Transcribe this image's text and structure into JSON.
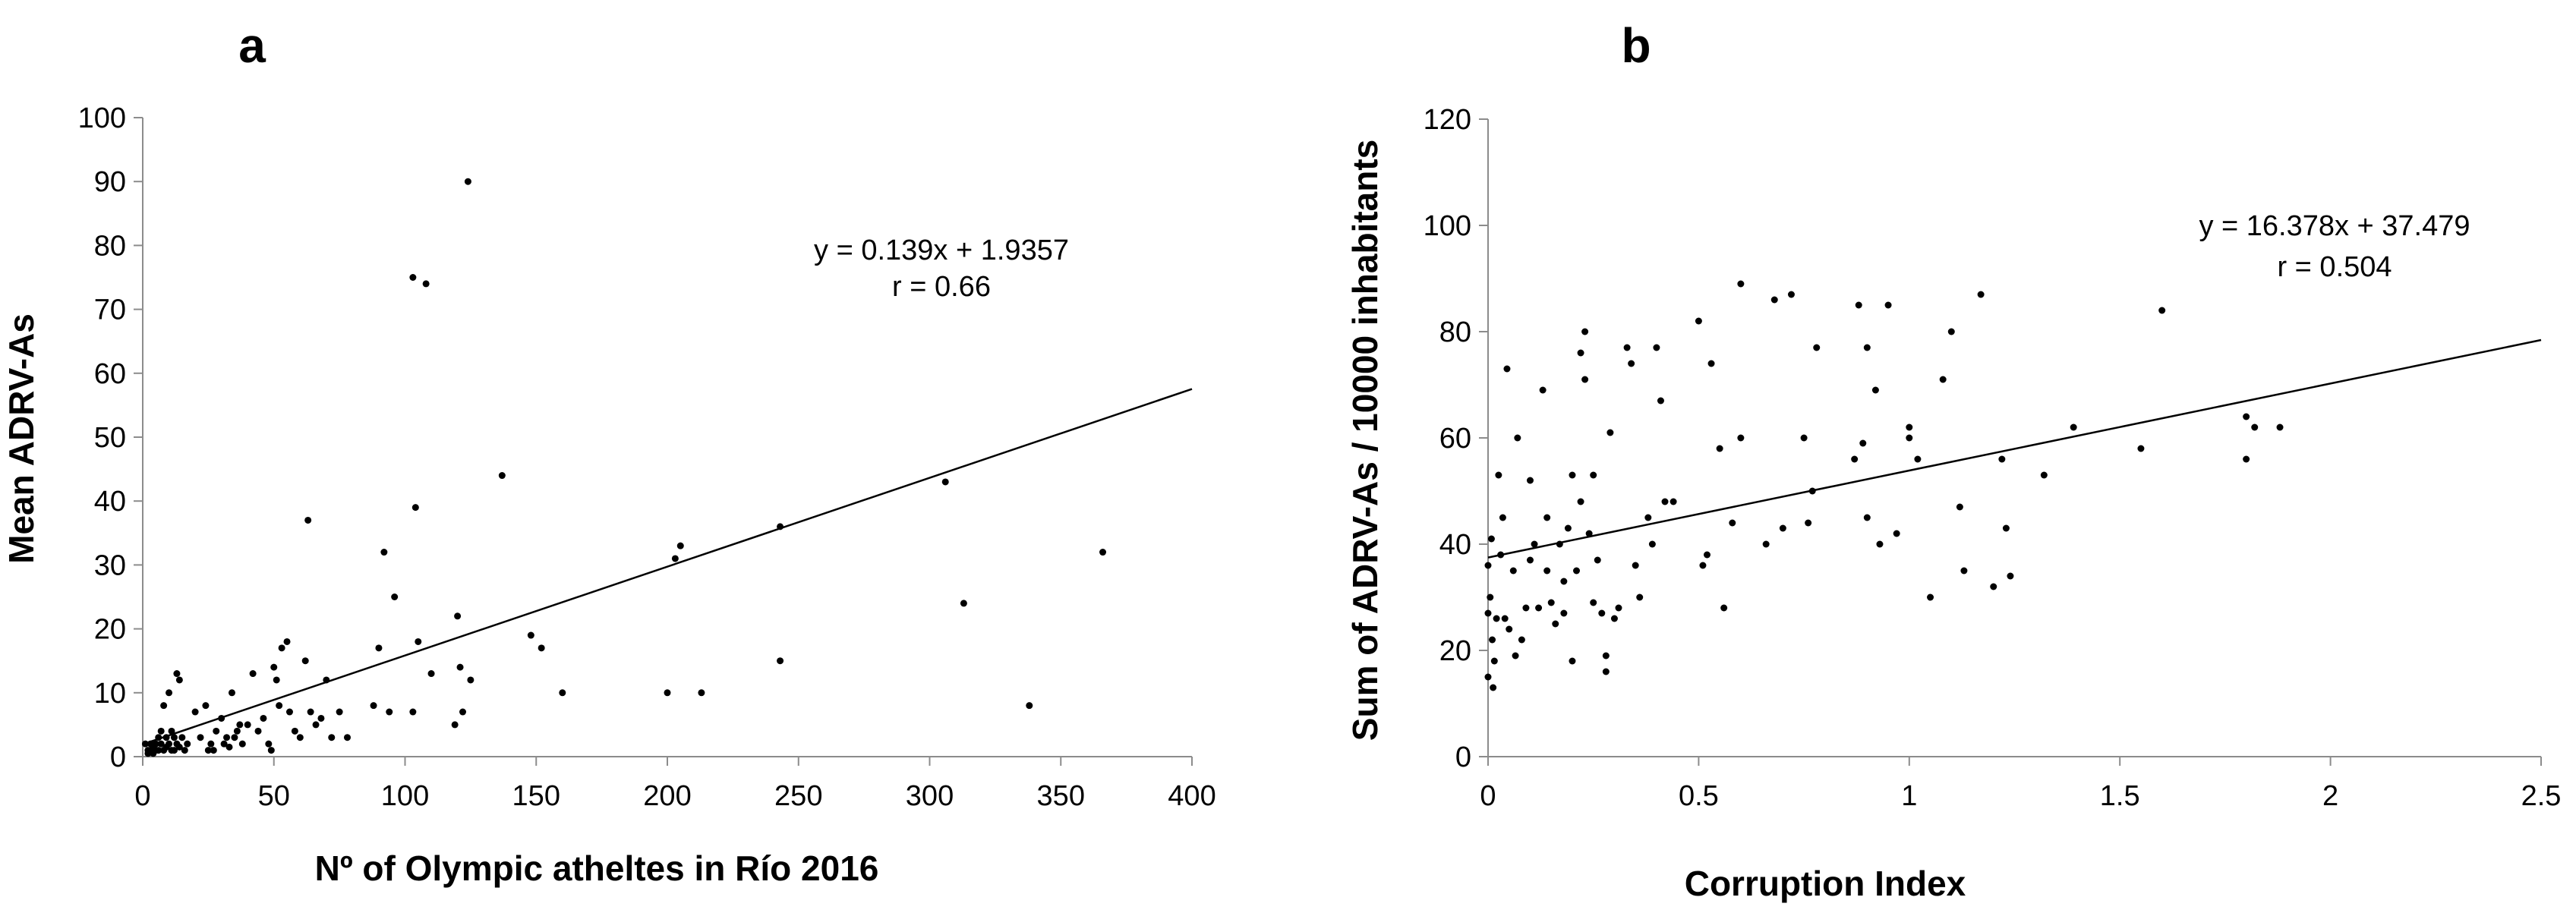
{
  "chart_data": [
    {
      "panel_label": "a",
      "type": "scatter",
      "xlabel": "Nº of Olympic atheltes in Río 2016",
      "ylabel": "Mean ADRV-As",
      "xlim": [
        0,
        400
      ],
      "ylim": [
        0,
        100
      ],
      "xticks": [
        0,
        50,
        100,
        150,
        200,
        250,
        300,
        350,
        400
      ],
      "yticks": [
        0,
        10,
        20,
        30,
        40,
        50,
        60,
        70,
        80,
        90,
        100
      ],
      "grid": false,
      "trendline": {
        "equation": "y = 0.139x + 1.9357",
        "r_label": "r = 0.66",
        "slope": 0.139,
        "intercept": 1.9357,
        "x_range": [
          0,
          400
        ]
      },
      "points": [
        [
          1,
          2
        ],
        [
          2,
          1
        ],
        [
          2,
          0.5
        ],
        [
          3,
          2
        ],
        [
          3,
          1
        ],
        [
          4,
          1.5
        ],
        [
          4,
          0.5
        ],
        [
          5,
          2
        ],
        [
          5,
          1
        ],
        [
          6,
          3
        ],
        [
          6,
          1
        ],
        [
          7,
          4
        ],
        [
          7,
          2
        ],
        [
          8,
          8
        ],
        [
          8,
          1
        ],
        [
          9,
          3
        ],
        [
          9,
          1.5
        ],
        [
          10,
          10
        ],
        [
          10,
          2
        ],
        [
          11,
          4
        ],
        [
          11,
          1
        ],
        [
          12,
          3
        ],
        [
          12,
          1
        ],
        [
          13,
          13
        ],
        [
          13,
          2
        ],
        [
          14,
          12
        ],
        [
          14,
          1.5
        ],
        [
          15,
          3
        ],
        [
          16,
          1
        ],
        [
          17,
          2
        ],
        [
          20,
          7
        ],
        [
          22,
          3
        ],
        [
          24,
          8
        ],
        [
          25,
          1
        ],
        [
          26,
          2
        ],
        [
          27,
          1
        ],
        [
          28,
          4
        ],
        [
          30,
          6
        ],
        [
          31,
          2
        ],
        [
          32,
          3
        ],
        [
          33,
          1.5
        ],
        [
          34,
          10
        ],
        [
          35,
          3
        ],
        [
          36,
          4
        ],
        [
          37,
          5
        ],
        [
          38,
          2
        ],
        [
          40,
          5
        ],
        [
          42,
          13
        ],
        [
          44,
          4
        ],
        [
          46,
          6
        ],
        [
          48,
          2
        ],
        [
          49,
          1
        ],
        [
          50,
          14
        ],
        [
          51,
          12
        ],
        [
          52,
          8
        ],
        [
          53,
          17
        ],
        [
          55,
          18
        ],
        [
          56,
          7
        ],
        [
          58,
          4
        ],
        [
          60,
          3
        ],
        [
          62,
          15
        ],
        [
          63,
          37
        ],
        [
          64,
          7
        ],
        [
          66,
          5
        ],
        [
          68,
          6
        ],
        [
          70,
          12
        ],
        [
          72,
          3
        ],
        [
          75,
          7
        ],
        [
          78,
          3
        ],
        [
          88,
          8
        ],
        [
          90,
          17
        ],
        [
          92,
          32
        ],
        [
          94,
          7
        ],
        [
          96,
          25
        ],
        [
          103,
          75
        ],
        [
          104,
          39
        ],
        [
          105,
          18
        ],
        [
          108,
          74
        ],
        [
          110,
          13
        ],
        [
          103,
          7
        ],
        [
          120,
          22
        ],
        [
          121,
          14
        ],
        [
          122,
          7
        ],
        [
          119,
          5
        ],
        [
          124,
          90
        ],
        [
          125,
          12
        ],
        [
          137,
          44
        ],
        [
          148,
          19
        ],
        [
          152,
          17
        ],
        [
          160,
          10
        ],
        [
          200,
          10
        ],
        [
          203,
          31
        ],
        [
          205,
          33
        ],
        [
          213,
          10
        ],
        [
          243,
          36
        ],
        [
          243,
          15
        ],
        [
          306,
          43
        ],
        [
          313,
          24
        ],
        [
          338,
          8
        ],
        [
          366,
          32
        ]
      ]
    },
    {
      "panel_label": "b",
      "type": "scatter",
      "xlabel": "Corruption Index",
      "ylabel": "Sum of ADRV-As / 10000 inhabitants",
      "xlim": [
        0,
        2.5
      ],
      "ylim": [
        0,
        120
      ],
      "xticks": [
        0,
        0.5,
        1,
        1.5,
        2,
        2.5
      ],
      "yticks": [
        0,
        20,
        40,
        60,
        80,
        100,
        120
      ],
      "grid": false,
      "trendline": {
        "equation": "y = 16.378x + 37.479",
        "r_label": "r = 0.504",
        "slope": 16.378,
        "intercept": 37.479,
        "x_range": [
          0,
          2.5
        ]
      },
      "points": [
        [
          0.0,
          15
        ],
        [
          0.0,
          27
        ],
        [
          0.0,
          36
        ],
        [
          0.005,
          30
        ],
        [
          0.008,
          41
        ],
        [
          0.01,
          22
        ],
        [
          0.012,
          13
        ],
        [
          0.015,
          18
        ],
        [
          0.02,
          26
        ],
        [
          0.025,
          53
        ],
        [
          0.03,
          38
        ],
        [
          0.035,
          45
        ],
        [
          0.04,
          26
        ],
        [
          0.045,
          73
        ],
        [
          0.05,
          24
        ],
        [
          0.06,
          35
        ],
        [
          0.065,
          19
        ],
        [
          0.07,
          60
        ],
        [
          0.08,
          22
        ],
        [
          0.09,
          28
        ],
        [
          0.1,
          37
        ],
        [
          0.1,
          52
        ],
        [
          0.11,
          40
        ],
        [
          0.12,
          28
        ],
        [
          0.13,
          69
        ],
        [
          0.14,
          45
        ],
        [
          0.14,
          35
        ],
        [
          0.15,
          29
        ],
        [
          0.16,
          25
        ],
        [
          0.17,
          40
        ],
        [
          0.18,
          27
        ],
        [
          0.18,
          33
        ],
        [
          0.19,
          43
        ],
        [
          0.2,
          18
        ],
        [
          0.2,
          53
        ],
        [
          0.21,
          35
        ],
        [
          0.22,
          76
        ],
        [
          0.22,
          48
        ],
        [
          0.23,
          80
        ],
        [
          0.23,
          71
        ],
        [
          0.24,
          42
        ],
        [
          0.25,
          29
        ],
        [
          0.25,
          53
        ],
        [
          0.26,
          37
        ],
        [
          0.27,
          27
        ],
        [
          0.28,
          16
        ],
        [
          0.28,
          19
        ],
        [
          0.29,
          61
        ],
        [
          0.3,
          26
        ],
        [
          0.31,
          28
        ],
        [
          0.33,
          77
        ],
        [
          0.34,
          74
        ],
        [
          0.35,
          36
        ],
        [
          0.36,
          30
        ],
        [
          0.38,
          45
        ],
        [
          0.39,
          40
        ],
        [
          0.4,
          77
        ],
        [
          0.41,
          67
        ],
        [
          0.42,
          48
        ],
        [
          0.44,
          48
        ],
        [
          0.5,
          82
        ],
        [
          0.51,
          36
        ],
        [
          0.52,
          38
        ],
        [
          0.53,
          74
        ],
        [
          0.55,
          58
        ],
        [
          0.56,
          28
        ],
        [
          0.58,
          44
        ],
        [
          0.6,
          89
        ],
        [
          0.6,
          60
        ],
        [
          0.66,
          40
        ],
        [
          0.68,
          86
        ],
        [
          0.7,
          43
        ],
        [
          0.72,
          87
        ],
        [
          0.75,
          60
        ],
        [
          0.76,
          44
        ],
        [
          0.77,
          50
        ],
        [
          0.78,
          77
        ],
        [
          0.87,
          56
        ],
        [
          0.88,
          85
        ],
        [
          0.89,
          59
        ],
        [
          0.9,
          45
        ],
        [
          0.9,
          77
        ],
        [
          0.92,
          69
        ],
        [
          0.93,
          40
        ],
        [
          0.95,
          85
        ],
        [
          0.97,
          42
        ],
        [
          1.0,
          60
        ],
        [
          1.0,
          62
        ],
        [
          1.02,
          56
        ],
        [
          1.05,
          30
        ],
        [
          1.08,
          71
        ],
        [
          1.1,
          80
        ],
        [
          1.12,
          47
        ],
        [
          1.13,
          35
        ],
        [
          1.17,
          87
        ],
        [
          1.2,
          32
        ],
        [
          1.22,
          56
        ],
        [
          1.23,
          43
        ],
        [
          1.24,
          34
        ],
        [
          1.32,
          53
        ],
        [
          1.39,
          62
        ],
        [
          1.55,
          58
        ],
        [
          1.6,
          84
        ],
        [
          1.8,
          64
        ],
        [
          1.8,
          56
        ],
        [
          1.82,
          62
        ],
        [
          1.88,
          62
        ]
      ]
    }
  ]
}
